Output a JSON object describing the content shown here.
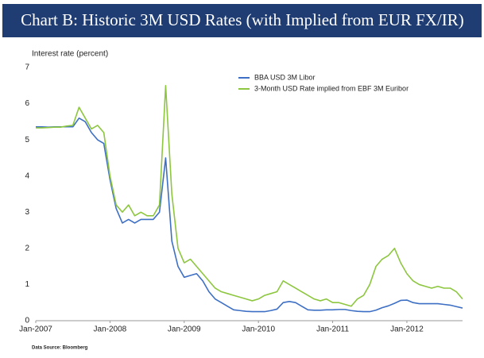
{
  "chart_data": {
    "type": "line",
    "title": "Chart B: Historic 3M USD Rates (with Implied from EUR FX/IR)",
    "y_label": "Interest rate (percent)",
    "source": "Data Source: Bloomberg",
    "x": [
      "2007-01",
      "2007-02",
      "2007-03",
      "2007-04",
      "2007-05",
      "2007-06",
      "2007-07",
      "2007-08",
      "2007-09",
      "2007-10",
      "2007-11",
      "2007-12",
      "2008-01",
      "2008-02",
      "2008-03",
      "2008-04",
      "2008-05",
      "2008-06",
      "2008-07",
      "2008-08",
      "2008-09",
      "2008-10",
      "2008-11",
      "2008-12",
      "2009-01",
      "2009-02",
      "2009-03",
      "2009-04",
      "2009-05",
      "2009-06",
      "2009-07",
      "2009-08",
      "2009-09",
      "2009-10",
      "2009-11",
      "2009-12",
      "2010-01",
      "2010-02",
      "2010-03",
      "2010-04",
      "2010-05",
      "2010-06",
      "2010-07",
      "2010-08",
      "2010-09",
      "2010-10",
      "2010-11",
      "2010-12",
      "2011-01",
      "2011-02",
      "2011-03",
      "2011-04",
      "2011-05",
      "2011-06",
      "2011-07",
      "2011-08",
      "2011-09",
      "2011-10",
      "2011-11",
      "2011-12",
      "2012-01",
      "2012-02",
      "2012-03",
      "2012-04",
      "2012-05",
      "2012-06",
      "2012-07",
      "2012-08",
      "2012-09",
      "2012-10"
    ],
    "series": [
      {
        "name": "BBA USD 3M Libor",
        "color": "#3d6fc4",
        "values": [
          5.36,
          5.36,
          5.35,
          5.36,
          5.36,
          5.36,
          5.36,
          5.6,
          5.5,
          5.2,
          5.0,
          4.9,
          3.9,
          3.1,
          2.7,
          2.8,
          2.7,
          2.8,
          2.8,
          2.8,
          3.0,
          4.5,
          2.2,
          1.5,
          1.2,
          1.25,
          1.3,
          1.1,
          0.8,
          0.6,
          0.5,
          0.4,
          0.3,
          0.28,
          0.26,
          0.25,
          0.25,
          0.25,
          0.28,
          0.32,
          0.5,
          0.53,
          0.5,
          0.4,
          0.3,
          0.29,
          0.29,
          0.3,
          0.3,
          0.31,
          0.31,
          0.28,
          0.26,
          0.25,
          0.25,
          0.29,
          0.36,
          0.41,
          0.48,
          0.56,
          0.57,
          0.5,
          0.47,
          0.47,
          0.47,
          0.47,
          0.45,
          0.43,
          0.39,
          0.35
        ]
      },
      {
        "name": "3-Month USD Rate implied from EBF 3M Euribor",
        "color": "#8dc63f",
        "values": [
          5.33,
          5.33,
          5.34,
          5.35,
          5.35,
          5.38,
          5.4,
          5.9,
          5.6,
          5.3,
          5.4,
          5.2,
          4.0,
          3.2,
          3.0,
          3.2,
          2.9,
          3.0,
          2.9,
          2.9,
          3.2,
          6.5,
          3.5,
          2.0,
          1.6,
          1.7,
          1.5,
          1.3,
          1.1,
          0.9,
          0.8,
          0.75,
          0.7,
          0.65,
          0.6,
          0.55,
          0.6,
          0.7,
          0.75,
          0.8,
          1.1,
          1.0,
          0.9,
          0.8,
          0.7,
          0.6,
          0.55,
          0.6,
          0.5,
          0.5,
          0.45,
          0.4,
          0.6,
          0.7,
          1.0,
          1.5,
          1.7,
          1.8,
          2.0,
          1.6,
          1.3,
          1.1,
          1.0,
          0.95,
          0.9,
          0.95,
          0.9,
          0.9,
          0.8,
          0.6
        ]
      }
    ],
    "xlim": [
      "2007-01",
      "2012-10"
    ],
    "xticks": [
      {
        "value": "2007-01",
        "label": "Jan-2007"
      },
      {
        "value": "2008-01",
        "label": "Jan-2008"
      },
      {
        "value": "2009-01",
        "label": "Jan-2009"
      },
      {
        "value": "2010-01",
        "label": "Jan-2010"
      },
      {
        "value": "2011-01",
        "label": "Jan-2011"
      },
      {
        "value": "2012-01",
        "label": "Jan-2012"
      }
    ],
    "ylim": [
      0,
      7
    ],
    "yticks": [
      0,
      1,
      2,
      3,
      4,
      5,
      6,
      7
    ],
    "grid": false,
    "legend": "top-right"
  }
}
